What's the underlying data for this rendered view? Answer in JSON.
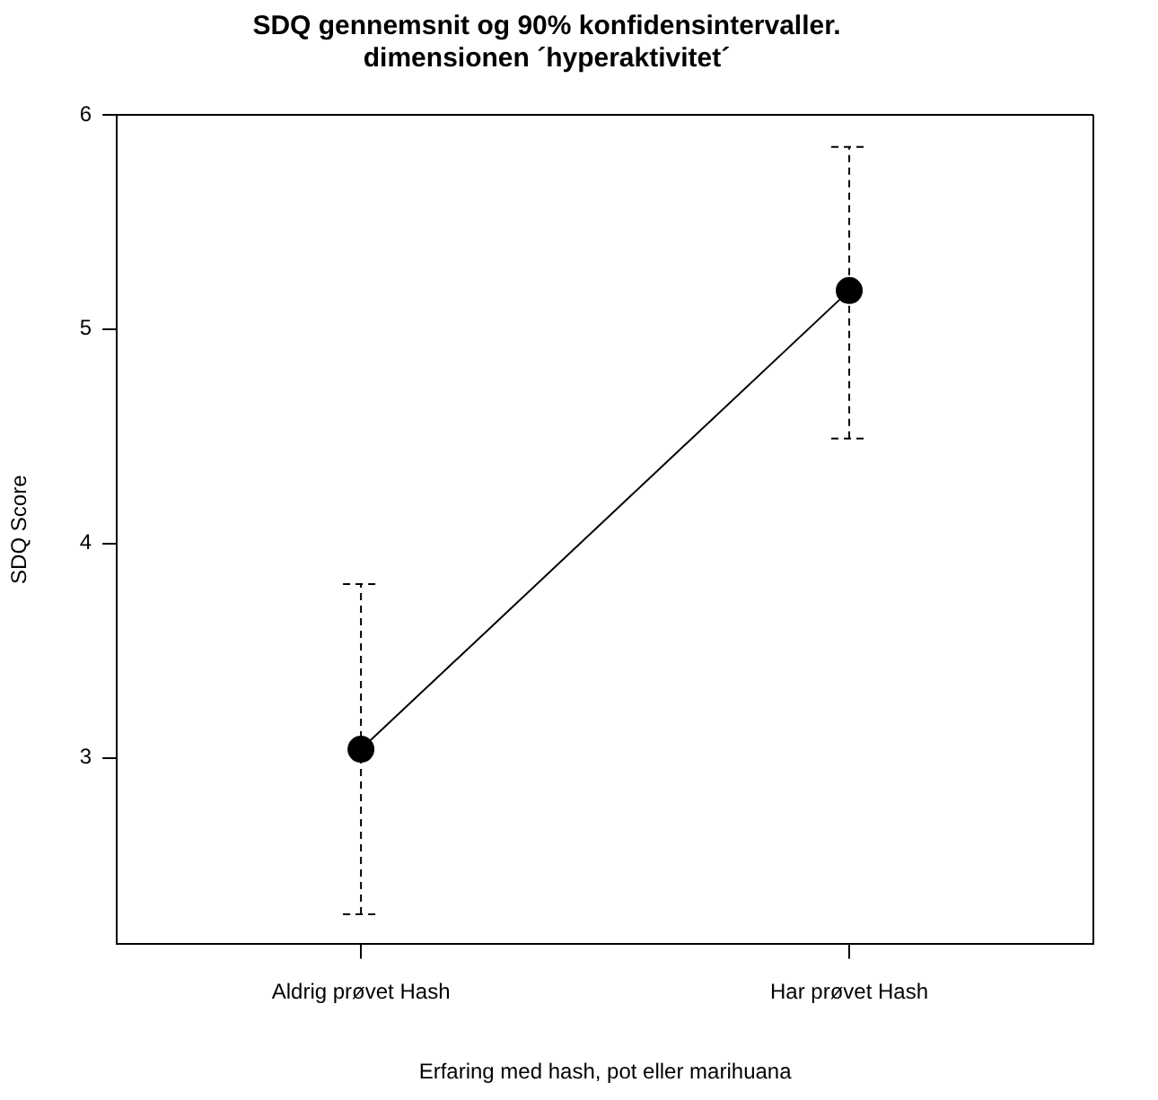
{
  "chart_data": {
    "type": "line",
    "title": "SDQ gennemsnit og 90% konfidensintervaller.\ndimensionen ´hyperaktivitet´",
    "xlabel": "Erfaring med hash, pot eller marihuana",
    "ylabel": "SDQ Score",
    "categories": [
      "Aldrig prøvet Hash",
      "Har prøvet Hash"
    ],
    "series": [
      {
        "color": "#000000",
        "values": [
          3.04,
          5.18
        ],
        "errors": [
          [
            2.27,
            3.81
          ],
          [
            4.49,
            5.85
          ]
        ]
      }
    ],
    "ylim": [
      2.13,
      6.0
    ],
    "yticks": [
      3,
      4,
      5,
      6
    ],
    "grid": false,
    "legend": false,
    "marker": "circle",
    "line_style": "solid"
  }
}
